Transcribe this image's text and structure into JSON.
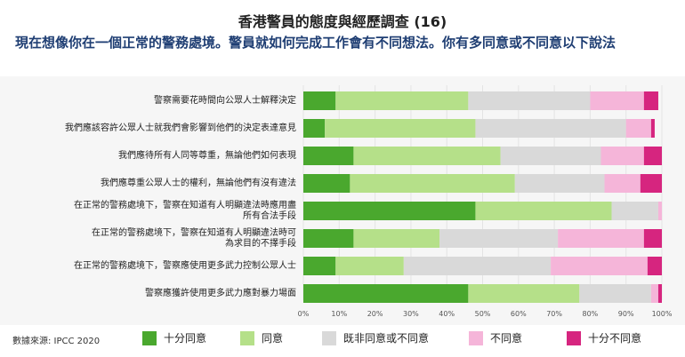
{
  "chart_data": {
    "type": "bar",
    "orientation": "horizontal",
    "stacked": true,
    "title": "香港警員的態度與經歷調查 (16)",
    "subtitle": "現在想像你在一個正常的警務處境。警員就如何完成工作會有不同想法。你有多同意或不同意以下說法",
    "categories": [
      "警察需要花時間向公眾人士解釋決定",
      "我們應該容許公眾人士就我們會影響到他們的決定表達意見",
      "我們應待所有人同等尊重，無論他們如何表現",
      "我們應尊重公眾人士的權利，無論他們有沒有違法",
      "在正常的警務處境下，警察在知道有人明顯違法時應用盡所有合法手段",
      "在正常的警務處境下，警察在知道有人明顯違法時可為求目的不擇手段",
      "在正常的警務處境下，警察應使用更多武力控制公眾人士",
      "警察應獲許使用更多武力應對暴力場面"
    ],
    "category_lines": [
      [
        "警察需要花時間向公眾人士解釋決定"
      ],
      [
        "我們應該容許公眾人士就我們會影響到他們的決定表達意見"
      ],
      [
        "我們應待所有人同等尊重，無論他們如何表現"
      ],
      [
        "我們應尊重公眾人士的權利，無論他們有沒有違法"
      ],
      [
        "在正常的警務處境下，警察在知道有人明顯違法時應用盡",
        "所有合法手段"
      ],
      [
        "在正常的警務處境下，警察在知道有人明顯違法時可",
        "為求目的不擇手段"
      ],
      [
        "在正常的警務處境下，警察應使用更多武力控制公眾人士"
      ],
      [
        "警察應獲許使用更多武力應對暴力場面"
      ]
    ],
    "series": [
      {
        "name": "十分同意",
        "color": "#4aa82e",
        "values": [
          9,
          6,
          14,
          13,
          48,
          14,
          9,
          46
        ]
      },
      {
        "name": "同意",
        "color": "#b5e089",
        "values": [
          37,
          42,
          41,
          46,
          38,
          24,
          19,
          31
        ]
      },
      {
        "name": "既非同意或不同意",
        "color": "#d9d9d9",
        "values": [
          34,
          42,
          28,
          25,
          13,
          33,
          41,
          20
        ]
      },
      {
        "name": "不同意",
        "color": "#f5b5d9",
        "values": [
          15,
          7,
          12,
          10,
          1,
          24,
          27,
          2
        ]
      },
      {
        "name": "十分不同意",
        "color": "#d6257f",
        "values": [
          4,
          1,
          5,
          6,
          0,
          5,
          4,
          1
        ]
      }
    ],
    "xlim": [
      0,
      100
    ],
    "x_ticks": [
      "0%",
      "10%",
      "20%",
      "30%",
      "40%",
      "50%",
      "60%",
      "70%",
      "80%",
      "90%",
      "100%"
    ],
    "grid": true,
    "legend_position": "bottom"
  },
  "source": "數據來源: IPCC 2020"
}
